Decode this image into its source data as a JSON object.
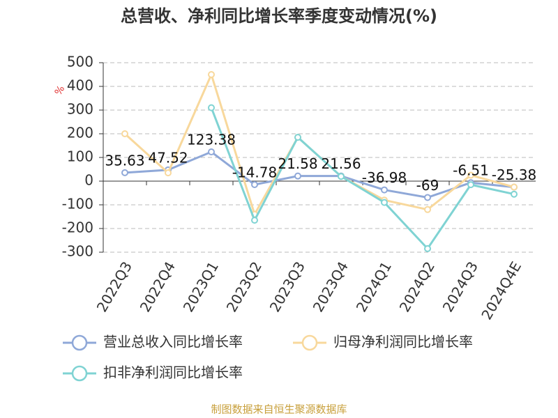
{
  "chart_data": {
    "type": "line",
    "title": "总营收、净利同比增长率季度变动情况(%)",
    "y_label": "%",
    "source": "制图数据来自恒生聚源数据库",
    "categories": [
      "2022Q3",
      "2022Q4",
      "2023Q1",
      "2023Q2",
      "2023Q3",
      "2023Q4",
      "2024Q1",
      "2024Q2",
      "2024Q3",
      "2024Q4E"
    ],
    "series": [
      {
        "name": "营业总收入同比增长率",
        "color": "#8fa8d8",
        "values": [
          35.63,
          47.52,
          123.38,
          -14.78,
          21.58,
          21.56,
          -36.98,
          -69,
          -6.51,
          -25.38
        ],
        "show_labels": true
      },
      {
        "name": "归母净利润同比增长率",
        "color": "#f8d89c",
        "values": [
          200,
          35,
          450,
          -140,
          185,
          20,
          -80,
          -120,
          25,
          -25
        ],
        "show_labels": false
      },
      {
        "name": "扣非净利润同比增长率",
        "color": "#7fd3d3",
        "values": [
          null,
          null,
          310,
          -165,
          185,
          20,
          -90,
          -285,
          -15,
          -55
        ],
        "show_labels": false
      }
    ],
    "ylim": [
      -300,
      500
    ],
    "yticks": [
      -300,
      -200,
      -100,
      0,
      100,
      200,
      300,
      400,
      500
    ],
    "grid": true
  }
}
